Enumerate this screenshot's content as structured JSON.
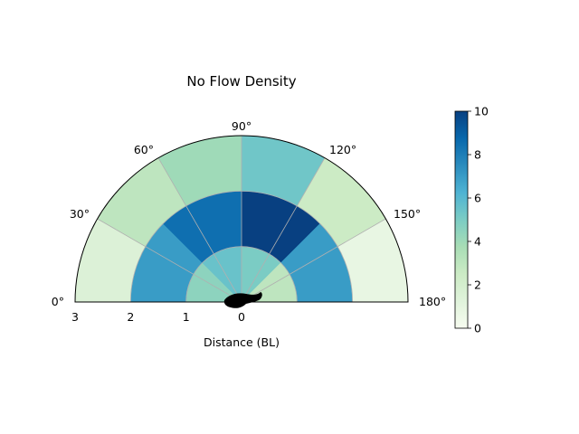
{
  "chart_data": {
    "type": "polar-heatmap",
    "title": "No Flow Density",
    "xlabel": "Distance (BL)",
    "angle_ticks": [
      {
        "deg": 0,
        "label": "0°"
      },
      {
        "deg": 30,
        "label": "30°"
      },
      {
        "deg": 60,
        "label": "60°"
      },
      {
        "deg": 90,
        "label": "90°"
      },
      {
        "deg": 120,
        "label": "120°"
      },
      {
        "deg": 150,
        "label": "150°"
      },
      {
        "deg": 180,
        "label": "180°"
      }
    ],
    "radius_ticks": [
      {
        "r": 3,
        "label": "3"
      },
      {
        "r": 2,
        "label": "2"
      },
      {
        "r": 1,
        "label": "1"
      },
      {
        "r": 0,
        "label": "0"
      }
    ],
    "rlim": [
      0,
      3
    ],
    "theta_range_deg": [
      0,
      180
    ],
    "bins": [
      {
        "r0": 0,
        "r1": 1,
        "a0": 0,
        "a1": 45,
        "value": 4.5
      },
      {
        "r0": 0,
        "r1": 1,
        "a0": 45,
        "a1": 90,
        "value": 5.5
      },
      {
        "r0": 0,
        "r1": 1,
        "a0": 90,
        "a1": 135,
        "value": 5.0
      },
      {
        "r0": 0,
        "r1": 1,
        "a0": 135,
        "a1": 180,
        "value": 3.0
      },
      {
        "r0": 1,
        "r1": 2,
        "a0": 0,
        "a1": 45,
        "value": 7.0
      },
      {
        "r0": 1,
        "r1": 2,
        "a0": 45,
        "a1": 90,
        "value": 8.5
      },
      {
        "r0": 1,
        "r1": 2,
        "a0": 90,
        "a1": 135,
        "value": 10.0
      },
      {
        "r0": 1,
        "r1": 2,
        "a0": 135,
        "a1": 180,
        "value": 7.0
      },
      {
        "r0": 2,
        "r1": 3,
        "a0": 0,
        "a1": 30,
        "value": 1.5
      },
      {
        "r0": 2,
        "r1": 3,
        "a0": 30,
        "a1": 60,
        "value": 3.0
      },
      {
        "r0": 2,
        "r1": 3,
        "a0": 60,
        "a1": 90,
        "value": 4.0
      },
      {
        "r0": 2,
        "r1": 3,
        "a0": 90,
        "a1": 120,
        "value": 5.3
      },
      {
        "r0": 2,
        "r1": 3,
        "a0": 120,
        "a1": 150,
        "value": 2.5
      },
      {
        "r0": 2,
        "r1": 3,
        "a0": 150,
        "a1": 180,
        "value": 0.8
      }
    ],
    "colorbar": {
      "min": 0,
      "max": 10,
      "colormap": "GnBu",
      "ticks": [
        {
          "value": 0,
          "label": "0"
        },
        {
          "value": 2,
          "label": "2"
        },
        {
          "value": 4,
          "label": "4"
        },
        {
          "value": 6,
          "label": "6"
        },
        {
          "value": 8,
          "label": "8"
        },
        {
          "value": 10,
          "label": "10"
        }
      ]
    },
    "grid": true,
    "colors": {
      "gridline": "#b0b0b0",
      "frame": "#000000",
      "fish": "#000000",
      "cmap": [
        "#f7fcf0",
        "#e0f3db",
        "#ccebc5",
        "#a8ddb5",
        "#7bccc4",
        "#4eb3d3",
        "#2b8cbe",
        "#0868ac",
        "#084081"
      ]
    },
    "center_marker": "fish-icon"
  }
}
